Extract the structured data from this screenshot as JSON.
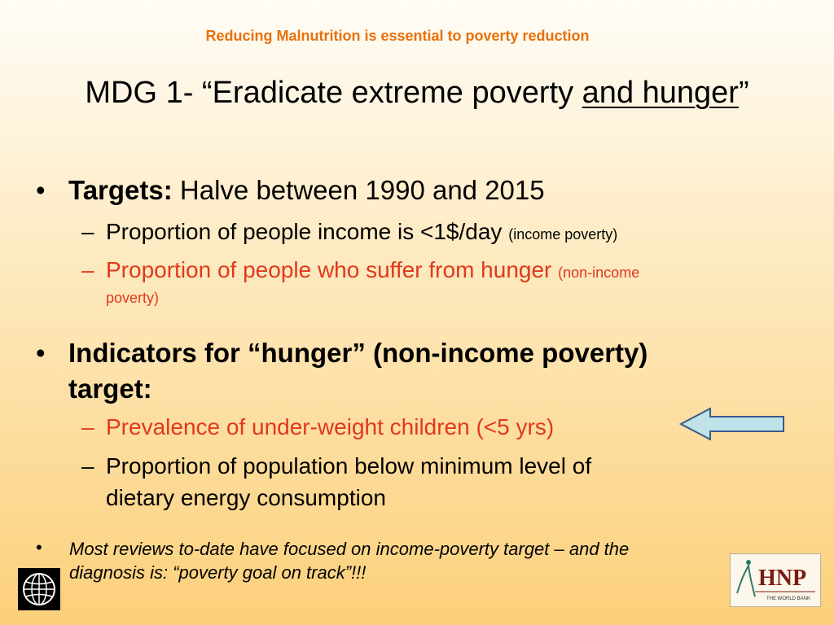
{
  "header": {
    "subtitle": "Reducing Malnutrition is essential to poverty reduction",
    "title_plain": "MDG 1- “Eradicate extreme poverty ",
    "title_underlined": "and hunger",
    "title_end": "”"
  },
  "bullets": [
    {
      "label": "Targets:",
      "text": " Halve between 1990 and 2015",
      "sub": [
        {
          "text": "Proportion of people income is <1$/day ",
          "note": "(income poverty)"
        },
        {
          "text": "Proportion of people who suffer from hunger ",
          "note_line1": "(non-income",
          "note_line2": "poverty)"
        }
      ]
    },
    {
      "line1": "Indicators for “hunger” (non-income poverty)",
      "line2": "target:",
      "sub": [
        {
          "text": "Prevalence of under-weight children (<5 yrs)"
        },
        {
          "line1": "Proportion of population below minimum level of",
          "line2": "dietary energy consumption"
        }
      ]
    }
  ],
  "note": {
    "line1": "Most reviews to-date have focused on income-poverty target – and the",
    "line2": "diagnosis is: “poverty goal on track”!!!"
  },
  "symbols": {
    "bullet": "•",
    "dash": "–"
  },
  "logos": {
    "right_text": "HNP",
    "right_small": "THE WORLD BANK"
  },
  "colors": {
    "accent": "#e8700a",
    "highlight": "#e0391c",
    "arrow_fill": "#bfe3e8"
  }
}
